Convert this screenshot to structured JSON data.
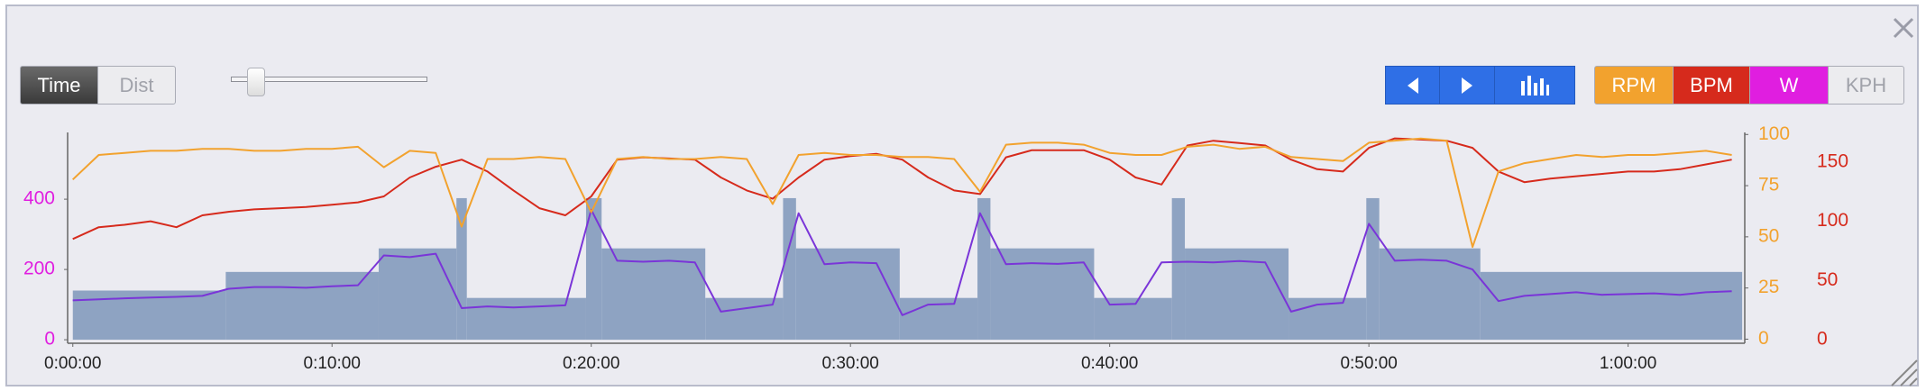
{
  "toolbar": {
    "time": "Time",
    "dist": "Dist",
    "kph": "KPH"
  },
  "chart_data": {
    "type": "line",
    "x": [
      0,
      1,
      2,
      3,
      4,
      5,
      6,
      7,
      8,
      9,
      10,
      11,
      12,
      13,
      14,
      15,
      16,
      17,
      18,
      19,
      20,
      21,
      22,
      23,
      24,
      25,
      26,
      27,
      28,
      29,
      30,
      31,
      32,
      33,
      34,
      35,
      36,
      37,
      38,
      39,
      40,
      41,
      42,
      43,
      44,
      45,
      46,
      47,
      48,
      49,
      50,
      51,
      52,
      53,
      54,
      55,
      56,
      57,
      58,
      59,
      60,
      61,
      62,
      63,
      64
    ],
    "xlim": [
      -0.2,
      64.5
    ],
    "xticks": [
      {
        "value": 0,
        "label": "0:00:00"
      },
      {
        "value": 10,
        "label": "0:10:00"
      },
      {
        "value": 20,
        "label": "0:20:00"
      },
      {
        "value": 30,
        "label": "0:30:00"
      },
      {
        "value": 40,
        "label": "0:40:00"
      },
      {
        "value": 50,
        "label": "0:50:00"
      },
      {
        "value": 60,
        "label": "1:00:00"
      }
    ],
    "ylim": [
      -10,
      590
    ],
    "yticks": [
      0,
      200,
      400
    ],
    "ycolor": "#e01ee0",
    "y2lim": [
      -2,
      101
    ],
    "y2ticks": [
      0,
      25,
      50,
      75,
      100
    ],
    "y3lim": [
      -3,
      175
    ],
    "y3ticks": [
      0,
      50,
      100,
      150
    ],
    "grid": false,
    "target": {
      "color": "#8ea3c2",
      "x_start": [
        0,
        5.9,
        11.8,
        14.8,
        15.2,
        19.8,
        20.4,
        24.4,
        27.4,
        27.9,
        31.9,
        34.9,
        35.4,
        39.4,
        42.4,
        42.9,
        46.9,
        49.9,
        50.4,
        54.3
      ],
      "x_end": [
        5.9,
        11.8,
        14.8,
        15.2,
        19.8,
        20.4,
        24.4,
        27.4,
        27.9,
        31.9,
        34.9,
        35.4,
        39.4,
        42.4,
        42.9,
        46.9,
        49.9,
        50.4,
        54.3,
        64.4
      ],
      "values": [
        140,
        193,
        260,
        403,
        119,
        403,
        260,
        119,
        403,
        260,
        119,
        403,
        260,
        119,
        403,
        260,
        119,
        403,
        260,
        193
      ]
    },
    "series": [
      {
        "name": "RPM",
        "color": "#f2a22e",
        "axis": "y2",
        "values": [
          78,
          90,
          91,
          92,
          92,
          93,
          93,
          92,
          92,
          93,
          93,
          94,
          84,
          92,
          91,
          55,
          88,
          88,
          89,
          88,
          62,
          88,
          89,
          88,
          88,
          89,
          88,
          66,
          90,
          91,
          90,
          90,
          89,
          89,
          88,
          72,
          95,
          96,
          96,
          95,
          91,
          90,
          90,
          94,
          95,
          93,
          94,
          89,
          88,
          87,
          96,
          97,
          98,
          97,
          45,
          82,
          86,
          88,
          90,
          89,
          90,
          90,
          91,
          92,
          90
        ]
      },
      {
        "name": "BPM",
        "color": "#d62a1c",
        "axis": "y3",
        "values": [
          85,
          95,
          97,
          100,
          95,
          105,
          108,
          110,
          111,
          112,
          114,
          116,
          121,
          137,
          146,
          152,
          142,
          126,
          111,
          105,
          121,
          152,
          154,
          153,
          152,
          137,
          126,
          119,
          137,
          152,
          155,
          157,
          152,
          137,
          126,
          123,
          154,
          160,
          160,
          160,
          152,
          137,
          131,
          164,
          168,
          166,
          164,
          152,
          144,
          142,
          162,
          170,
          169,
          168,
          162,
          142,
          133,
          136,
          138,
          140,
          142,
          142,
          144,
          148,
          152
        ]
      },
      {
        "name": "W",
        "color": "#7a35d8",
        "values": [
          112,
          115,
          118,
          120,
          122,
          125,
          145,
          150,
          150,
          148,
          152,
          155,
          240,
          235,
          245,
          90,
          95,
          92,
          95,
          98,
          370,
          225,
          222,
          225,
          220,
          80,
          90,
          100,
          360,
          215,
          220,
          218,
          70,
          100,
          102,
          360,
          215,
          218,
          216,
          220,
          100,
          102,
          220,
          222,
          220,
          224,
          220,
          80,
          100,
          105,
          330,
          225,
          228,
          225,
          200,
          110,
          125,
          130,
          135,
          128,
          130,
          132,
          128,
          135,
          138
        ]
      }
    ]
  }
}
